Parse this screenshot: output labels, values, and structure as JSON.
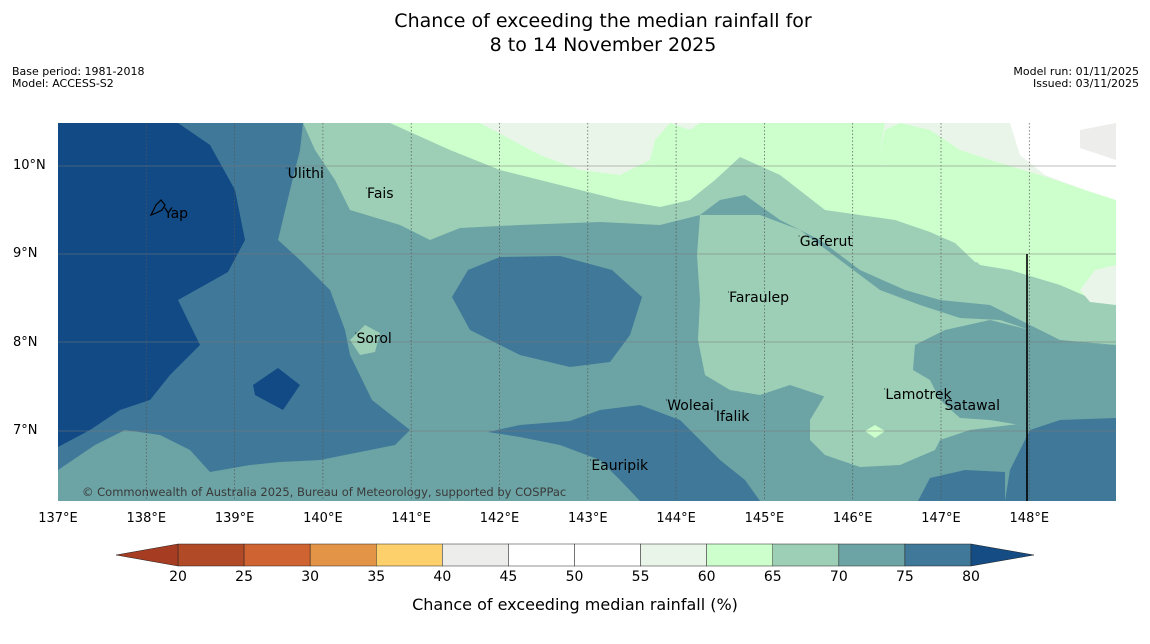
{
  "title": {
    "line1": "Chance of exceeding the median rainfall for",
    "line2": "8 to 14 November 2025"
  },
  "meta": {
    "base_period": "Base period: 1981-2018",
    "model": "Model: ACCESS-S2",
    "model_run": "Model run: 01/11/2025",
    "issued": "Issued: 03/11/2025"
  },
  "axes": {
    "x_ticks": [
      "137°E",
      "138°E",
      "139°E",
      "140°E",
      "141°E",
      "142°E",
      "143°E",
      "144°E",
      "145°E",
      "146°E",
      "147°E",
      "148°E"
    ],
    "y_ticks": [
      "10°N",
      "9°N",
      "8°N",
      "7°N"
    ]
  },
  "places": [
    {
      "name": "Yap",
      "lon": 138.2,
      "lat": 9.55
    },
    {
      "name": "Ulithi",
      "lon": 139.6,
      "lat": 10.0
    },
    {
      "name": "Fais",
      "lon": 140.5,
      "lat": 9.77
    },
    {
      "name": "Gaferut",
      "lon": 145.4,
      "lat": 9.23
    },
    {
      "name": "Faraulep",
      "lon": 144.6,
      "lat": 8.6
    },
    {
      "name": "Sorol",
      "lon": 140.38,
      "lat": 8.13
    },
    {
      "name": "Woleai",
      "lon": 143.9,
      "lat": 7.37
    },
    {
      "name": "Ifalik",
      "lon": 144.45,
      "lat": 7.25
    },
    {
      "name": "Lamotrek",
      "lon": 146.37,
      "lat": 7.5
    },
    {
      "name": "Satawal",
      "lon": 147.04,
      "lat": 7.37
    },
    {
      "name": "Eauripik",
      "lon": 143.04,
      "lat": 6.69
    }
  ],
  "copyright": "© Commonwealth of Australia 2025, Bureau of Meteorology, supported by COSPPac",
  "colorbar": {
    "label": "Chance of exceeding median rainfall (%)",
    "ticks": [
      "20",
      "25",
      "30",
      "35",
      "40",
      "45",
      "50",
      "55",
      "60",
      "65",
      "70",
      "75",
      "80"
    ],
    "low_extend_color": "#a63d22",
    "high_extend_color": "#154c84",
    "colors": [
      "#b04a27",
      "#cf6331",
      "#e39446",
      "#fdd06b",
      "#ededeb",
      "#ffffff",
      "#ffffff",
      "#eaf5ea",
      "#ccffcc",
      "#9ccfb6",
      "#6ca3a4",
      "#3f7898"
    ]
  },
  "legend_colors": {
    "lt_75_80": "#3f7898",
    "gt_80": "#124a85",
    "band_70_75": "#6ca3a4",
    "band_65_70": "#9ccfb6",
    "band_60_65": "#ccffcc",
    "band_55_60": "#eaf5ea"
  }
}
